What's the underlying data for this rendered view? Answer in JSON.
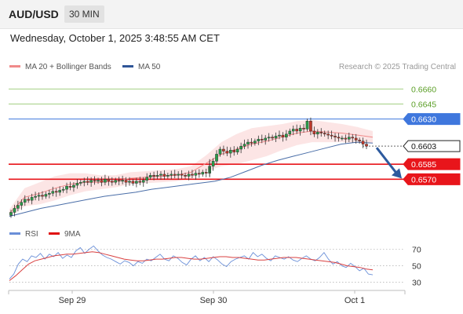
{
  "header": {
    "symbol": "AUD/USD",
    "interval": "30 MIN"
  },
  "datetime": "Wednesday, October 1, 2025 3:48:55 AM CET",
  "legend": {
    "ma20": "MA 20 + Bollinger Bands",
    "ma50": "MA 50",
    "rsi": "RSI",
    "ma9": "9MA",
    "credit": "Research © 2025 Trading Central"
  },
  "colors": {
    "bollinger_fill": "#fbdcdc",
    "ma20": "#f08a8a",
    "ma50": "#4a6ea8",
    "level_red": "#e8151b",
    "level_blue": "#3f77dd",
    "level_green": "#a4cf84",
    "green_text": "#5a9e25",
    "candle_up": "#2a9b4a",
    "candle_down": "#c0392b",
    "rsi": "#6a8fd8",
    "rsi_ma": "#d94040",
    "arrow": "#2d5a9e"
  },
  "chart_data": {
    "type": "candlestick",
    "instrument": "AUD/USD",
    "timeframe": "30 MIN",
    "ylim": [
      0.6528,
      0.6672
    ],
    "x_ticks": [
      "Sep 29",
      "Sep 30",
      "Oct 1"
    ],
    "levels": [
      {
        "value": 0.666,
        "label": "0.6660",
        "kind": "resistance"
      },
      {
        "value": 0.6645,
        "label": "0.6645",
        "kind": "resistance"
      },
      {
        "value": 0.663,
        "label": "0.6630",
        "kind": "pivot"
      },
      {
        "value": 0.6603,
        "label": "0.6603",
        "kind": "last"
      },
      {
        "value": 0.6585,
        "label": "0.6585",
        "kind": "target"
      },
      {
        "value": 0.657,
        "label": "0.6570",
        "kind": "target"
      }
    ],
    "close_series": [
      0.6537,
      0.6541,
      0.6544,
      0.6547,
      0.655,
      0.6549,
      0.6552,
      0.6553,
      0.6554,
      0.6553,
      0.6555,
      0.6556,
      0.6558,
      0.6557,
      0.6559,
      0.656,
      0.6563,
      0.6562,
      0.6564,
      0.6566,
      0.6567,
      0.6568,
      0.6567,
      0.6569,
      0.6568,
      0.6569,
      0.6567,
      0.657,
      0.6568,
      0.6567,
      0.6569,
      0.6568,
      0.6569,
      0.6567,
      0.6568,
      0.6566,
      0.6568,
      0.6567,
      0.6569,
      0.6572,
      0.6574,
      0.6573,
      0.6574,
      0.6575,
      0.6573,
      0.6574,
      0.6575,
      0.6574,
      0.6575,
      0.6574,
      0.6573,
      0.6575,
      0.6574,
      0.6576,
      0.6575,
      0.6577,
      0.6576,
      0.6583,
      0.6588,
      0.6595,
      0.66,
      0.6598,
      0.6596,
      0.6599,
      0.6597,
      0.66,
      0.6603,
      0.6605,
      0.6607,
      0.6606,
      0.6608,
      0.661,
      0.6609,
      0.6611,
      0.6612,
      0.6611,
      0.6613,
      0.6614,
      0.6612,
      0.6615,
      0.6618,
      0.662,
      0.6618,
      0.6621,
      0.662,
      0.6628,
      0.6618,
      0.6615,
      0.6617,
      0.6616,
      0.6615,
      0.6614,
      0.6613,
      0.6612,
      0.6611,
      0.6611,
      0.661,
      0.6612,
      0.6611,
      0.6609,
      0.6608,
      0.6605,
      0.6603
    ],
    "ma20_series": [
      0.6536,
      0.6552,
      0.6556,
      0.6561,
      0.6565,
      0.6567,
      0.6567,
      0.6568,
      0.6571,
      0.6572,
      0.6573,
      0.6574,
      0.6577,
      0.6586,
      0.6595,
      0.66,
      0.6605,
      0.6608,
      0.6612,
      0.6616,
      0.6618,
      0.6617,
      0.6616,
      0.6614,
      0.6612
    ],
    "ma50_series": [
      0.6533,
      0.6537,
      0.6541,
      0.6544,
      0.6547,
      0.655,
      0.6553,
      0.6555,
      0.6557,
      0.656,
      0.6562,
      0.6564,
      0.6566,
      0.6568,
      0.6572,
      0.6578,
      0.6584,
      0.6589,
      0.6593,
      0.6597,
      0.6601,
      0.6605,
      0.6607,
      0.6606
    ],
    "bollinger_halfwidth": [
      0.0004,
      0.0009,
      0.0011,
      0.0012,
      0.0011,
      0.0009,
      0.0007,
      0.0006,
      0.0006,
      0.0006,
      0.0006,
      0.0006,
      0.0006,
      0.0008,
      0.0012,
      0.0015,
      0.0016,
      0.0015,
      0.0013,
      0.0012,
      0.0011,
      0.001,
      0.0009,
      0.0008,
      0.0006
    ],
    "forecast": {
      "from": 0.6603,
      "to": 0.657,
      "direction": "down"
    },
    "rsi": {
      "levels": [
        70,
        50,
        30
      ],
      "ylim": [
        22,
        80
      ],
      "rsi_values": [
        34,
        40,
        52,
        58,
        55,
        62,
        60,
        65,
        58,
        64,
        61,
        66,
        59,
        63,
        60,
        68,
        72,
        65,
        70,
        74,
        68,
        63,
        60,
        58,
        55,
        52,
        56,
        54,
        50,
        55,
        53,
        58,
        56,
        60,
        64,
        58,
        56,
        62,
        59,
        54,
        51,
        58,
        62,
        56,
        60,
        55,
        61,
        57,
        52,
        49,
        55,
        58,
        60,
        62,
        58,
        66,
        61,
        64,
        59,
        56,
        62,
        60,
        58,
        61,
        57,
        55,
        59,
        62,
        58,
        56,
        60,
        66,
        58,
        52,
        55,
        50,
        48,
        53,
        49,
        44,
        47,
        40,
        39
      ],
      "ma_values": [
        32,
        38,
        45,
        52,
        56,
        58,
        60,
        62,
        63,
        64,
        64,
        65,
        66,
        67,
        66,
        64,
        62,
        60,
        58,
        57,
        56,
        56,
        57,
        58,
        58,
        59,
        60,
        60,
        59,
        58,
        58,
        59,
        60,
        61,
        61,
        60,
        60,
        59,
        58,
        57,
        57,
        58,
        59,
        60,
        60,
        60,
        59,
        58,
        57,
        56,
        55,
        54,
        52,
        50,
        49,
        48,
        46,
        45
      ]
    }
  }
}
